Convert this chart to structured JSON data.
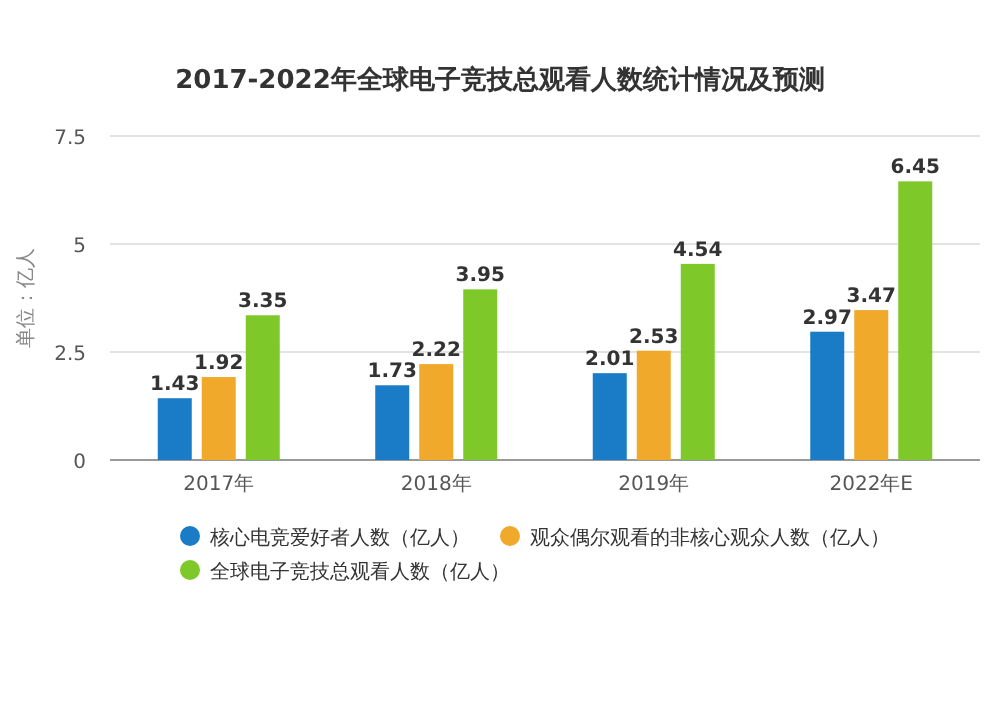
{
  "chart_data": {
    "type": "bar",
    "title": "2017-2022年全球电子竞技总观看人数统计情况及预测",
    "ylabel": "单位：亿人",
    "categories": [
      "2017年",
      "2018年",
      "2019年",
      "2022年E"
    ],
    "series": [
      {
        "name": "核心电竞爱好者人数（亿人）",
        "color": "#1a7cc6",
        "values": [
          1.43,
          1.73,
          2.01,
          2.97
        ]
      },
      {
        "name": "观众偶尔观看的非核心观众人数（亿人）",
        "color": "#f0a92a",
        "values": [
          1.92,
          2.22,
          2.53,
          3.47
        ]
      },
      {
        "name": "全球电子竞技总观看人数（亿人）",
        "color": "#7ec82a",
        "values": [
          3.35,
          3.95,
          4.54,
          6.45
        ]
      }
    ],
    "ylim": [
      0,
      7.5
    ],
    "yticks": [
      0,
      2.5,
      5,
      7.5
    ],
    "grid": "y",
    "legend": "bottom",
    "data_labels": true
  }
}
